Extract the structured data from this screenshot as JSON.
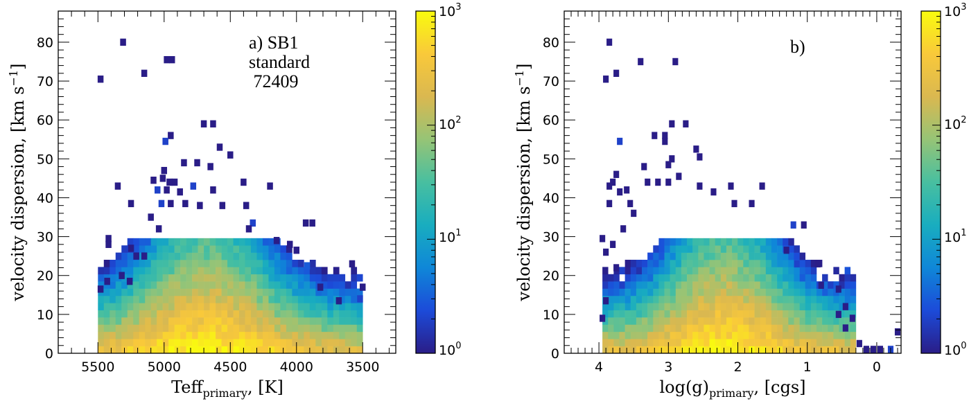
{
  "colormap": [
    "#2a1d87",
    "#1c4bd9",
    "#0f87d8",
    "#19adbf",
    "#48bfa0",
    "#96c476",
    "#dab850",
    "#f9c93a",
    "#f9fb0e"
  ],
  "chart_data": [
    {
      "type": "heatmap",
      "panel": "a",
      "xlabel_main": "Teff",
      "xlabel_sub": "primary",
      "xlabel_units": ", [K]",
      "ylabel": "velocity dispersion, [km s",
      "ylabel_sup": "−1",
      "ylabel_close": "]",
      "xlim": [
        5800,
        3250
      ],
      "ylim": [
        0,
        88
      ],
      "x_reversed": true,
      "xticks": [
        5500,
        5000,
        4500,
        4000,
        3500
      ],
      "yticks": [
        0,
        10,
        20,
        30,
        40,
        50,
        60,
        70,
        80
      ],
      "annotation": [
        "a) SB1",
        "standard",
        " 72409"
      ],
      "colorbar": {
        "scale": "log",
        "range": [
          1,
          1000
        ],
        "tick_base": "10",
        "tick_exps": [
          "0",
          "1",
          "2",
          "3"
        ]
      },
      "sparse_cells": [
        {
          "x": 5310,
          "y": 80,
          "count": 1
        },
        {
          "x": 5480,
          "y": 70.5,
          "count": 1
        },
        {
          "x": 5150,
          "y": 72,
          "count": 1
        },
        {
          "x": 4980,
          "y": 75.5,
          "count": 1
        },
        {
          "x": 4940,
          "y": 75.5,
          "count": 1
        },
        {
          "x": 4700,
          "y": 59,
          "count": 1
        },
        {
          "x": 4630,
          "y": 59,
          "count": 1
        },
        {
          "x": 4950,
          "y": 56,
          "count": 1
        },
        {
          "x": 4990,
          "y": 54.5,
          "count": 2
        },
        {
          "x": 4580,
          "y": 53,
          "count": 1
        },
        {
          "x": 4500,
          "y": 51,
          "count": 1
        },
        {
          "x": 4750,
          "y": 49,
          "count": 1
        },
        {
          "x": 4850,
          "y": 49,
          "count": 1
        },
        {
          "x": 4650,
          "y": 48,
          "count": 1
        },
        {
          "x": 5000,
          "y": 47,
          "count": 1
        },
        {
          "x": 5010,
          "y": 45,
          "count": 1
        },
        {
          "x": 4920,
          "y": 44,
          "count": 1
        },
        {
          "x": 5080,
          "y": 44.5,
          "count": 1
        },
        {
          "x": 4400,
          "y": 44,
          "count": 1
        },
        {
          "x": 4960,
          "y": 44,
          "count": 1
        },
        {
          "x": 5350,
          "y": 43,
          "count": 1
        },
        {
          "x": 4780,
          "y": 43,
          "count": 2
        },
        {
          "x": 4200,
          "y": 43,
          "count": 1
        },
        {
          "x": 5050,
          "y": 42,
          "count": 2
        },
        {
          "x": 4980,
          "y": 42,
          "count": 1
        },
        {
          "x": 4630,
          "y": 42,
          "count": 1
        },
        {
          "x": 4880,
          "y": 41.5,
          "count": 1
        },
        {
          "x": 5250,
          "y": 38.5,
          "count": 1
        },
        {
          "x": 4950,
          "y": 38.5,
          "count": 1
        },
        {
          "x": 5020,
          "y": 38.5,
          "count": 2
        },
        {
          "x": 4840,
          "y": 38.5,
          "count": 1
        },
        {
          "x": 4730,
          "y": 38,
          "count": 1
        },
        {
          "x": 4560,
          "y": 38,
          "count": 1
        },
        {
          "x": 4380,
          "y": 38,
          "count": 1
        },
        {
          "x": 5100,
          "y": 35,
          "count": 1
        },
        {
          "x": 4330,
          "y": 33.5,
          "count": 2
        },
        {
          "x": 4360,
          "y": 32,
          "count": 1
        },
        {
          "x": 3930,
          "y": 33.5,
          "count": 1
        },
        {
          "x": 3880,
          "y": 33.5,
          "count": 1
        },
        {
          "x": 5420,
          "y": 29.5,
          "count": 1
        },
        {
          "x": 5420,
          "y": 28,
          "count": 1
        },
        {
          "x": 5040,
          "y": 32,
          "count": 1
        },
        {
          "x": 5250,
          "y": 27,
          "count": 1
        },
        {
          "x": 5210,
          "y": 25,
          "count": 1
        },
        {
          "x": 5150,
          "y": 25,
          "count": 1
        },
        {
          "x": 4150,
          "y": 29,
          "count": 1
        },
        {
          "x": 4050,
          "y": 28,
          "count": 1
        },
        {
          "x": 4000,
          "y": 26.5,
          "count": 1
        },
        {
          "x": 3580,
          "y": 23,
          "count": 1
        },
        {
          "x": 3920,
          "y": 22.5,
          "count": 3
        },
        {
          "x": 5480,
          "y": 16.5,
          "count": 1
        },
        {
          "x": 5430,
          "y": 18.5,
          "count": 1
        },
        {
          "x": 5320,
          "y": 20,
          "count": 1
        },
        {
          "x": 5260,
          "y": 18.5,
          "count": 1
        },
        {
          "x": 3820,
          "y": 17,
          "count": 1
        },
        {
          "x": 3680,
          "y": 13.5,
          "count": 1
        },
        {
          "x": 3500,
          "y": 17,
          "count": 1
        },
        {
          "x": 3520,
          "y": 14,
          "count": 2
        }
      ]
    },
    {
      "type": "heatmap",
      "panel": "b",
      "xlabel_main": "log(g)",
      "xlabel_sub": "primary",
      "xlabel_units": ", [cgs]",
      "ylabel": "velocity dispersion, [km s",
      "ylabel_sup": "−1",
      "ylabel_close": "]",
      "xlim": [
        4.5,
        -0.35
      ],
      "ylim": [
        0,
        88
      ],
      "x_reversed": true,
      "xticks": [
        "4",
        "3",
        "2",
        "1",
        "0"
      ],
      "yticks": [
        0,
        10,
        20,
        30,
        40,
        50,
        60,
        70,
        80
      ],
      "annotation": [
        "b)"
      ],
      "colorbar": {
        "scale": "log",
        "range": [
          1,
          1000
        ],
        "tick_base": "10",
        "tick_exps": [
          "0",
          "1",
          "2",
          "3"
        ]
      },
      "sparse_cells": [
        {
          "x": 3.85,
          "y": 80,
          "count": 1
        },
        {
          "x": 3.9,
          "y": 70.5,
          "count": 1
        },
        {
          "x": 3.75,
          "y": 72,
          "count": 1
        },
        {
          "x": 3.4,
          "y": 75,
          "count": 1
        },
        {
          "x": 2.9,
          "y": 75,
          "count": 1
        },
        {
          "x": 2.95,
          "y": 59,
          "count": 1
        },
        {
          "x": 2.75,
          "y": 59,
          "count": 1
        },
        {
          "x": 3.7,
          "y": 54.5,
          "count": 2
        },
        {
          "x": 3.2,
          "y": 56,
          "count": 1
        },
        {
          "x": 3.05,
          "y": 56,
          "count": 1
        },
        {
          "x": 3.05,
          "y": 54.5,
          "count": 1
        },
        {
          "x": 2.6,
          "y": 52.5,
          "count": 1
        },
        {
          "x": 3.0,
          "y": 48.5,
          "count": 1
        },
        {
          "x": 2.95,
          "y": 50,
          "count": 1
        },
        {
          "x": 2.55,
          "y": 50.5,
          "count": 1
        },
        {
          "x": 3.35,
          "y": 48,
          "count": 1
        },
        {
          "x": 3.75,
          "y": 46,
          "count": 1
        },
        {
          "x": 3.8,
          "y": 44,
          "count": 1
        },
        {
          "x": 3.3,
          "y": 44,
          "count": 1
        },
        {
          "x": 3.15,
          "y": 44,
          "count": 1
        },
        {
          "x": 3.85,
          "y": 43,
          "count": 1
        },
        {
          "x": 2.55,
          "y": 43,
          "count": 1
        },
        {
          "x": 2.1,
          "y": 43,
          "count": 1
        },
        {
          "x": 1.65,
          "y": 43,
          "count": 1
        },
        {
          "x": 2.85,
          "y": 45.5,
          "count": 1
        },
        {
          "x": 3.0,
          "y": 44,
          "count": 1
        },
        {
          "x": 3.6,
          "y": 42,
          "count": 1
        },
        {
          "x": 3.7,
          "y": 41.5,
          "count": 1
        },
        {
          "x": 2.35,
          "y": 41.5,
          "count": 1
        },
        {
          "x": 3.55,
          "y": 38.5,
          "count": 1
        },
        {
          "x": 2.05,
          "y": 38.5,
          "count": 1
        },
        {
          "x": 1.8,
          "y": 38.5,
          "count": 1
        },
        {
          "x": 3.85,
          "y": 38.5,
          "count": 1
        },
        {
          "x": 3.65,
          "y": 32,
          "count": 1
        },
        {
          "x": 3.5,
          "y": 36,
          "count": 1
        },
        {
          "x": 3.95,
          "y": 29.5,
          "count": 1
        },
        {
          "x": 3.8,
          "y": 28,
          "count": 1
        },
        {
          "x": 1.2,
          "y": 33,
          "count": 2
        },
        {
          "x": 1.05,
          "y": 33,
          "count": 1
        },
        {
          "x": 1.3,
          "y": 26.5,
          "count": 1
        },
        {
          "x": 1.15,
          "y": 23,
          "count": 2
        },
        {
          "x": 0.85,
          "y": 23,
          "count": 1
        },
        {
          "x": 3.9,
          "y": 26,
          "count": 1
        },
        {
          "x": 3.75,
          "y": 22,
          "count": 1
        },
        {
          "x": 0.55,
          "y": 16.5,
          "count": 1
        },
        {
          "x": 0.8,
          "y": 17.5,
          "count": 1
        },
        {
          "x": 0.45,
          "y": 12,
          "count": 1
        },
        {
          "x": 0.55,
          "y": 10,
          "count": 1
        },
        {
          "x": 0.35,
          "y": 9,
          "count": 1
        },
        {
          "x": 0.45,
          "y": 6.5,
          "count": 1
        },
        {
          "x": 3.95,
          "y": 9,
          "count": 1
        },
        {
          "x": 3.9,
          "y": 13.5,
          "count": 1
        },
        {
          "x": 0.25,
          "y": 2.5,
          "count": 1
        },
        {
          "x": 0.15,
          "y": 1,
          "count": 1
        },
        {
          "x": -0.05,
          "y": 1,
          "count": 1
        },
        {
          "x": 0.05,
          "y": 1,
          "count": 1
        },
        {
          "x": -0.2,
          "y": 1,
          "count": 2
        },
        {
          "x": -0.3,
          "y": 5.5,
          "count": 1
        }
      ]
    }
  ]
}
